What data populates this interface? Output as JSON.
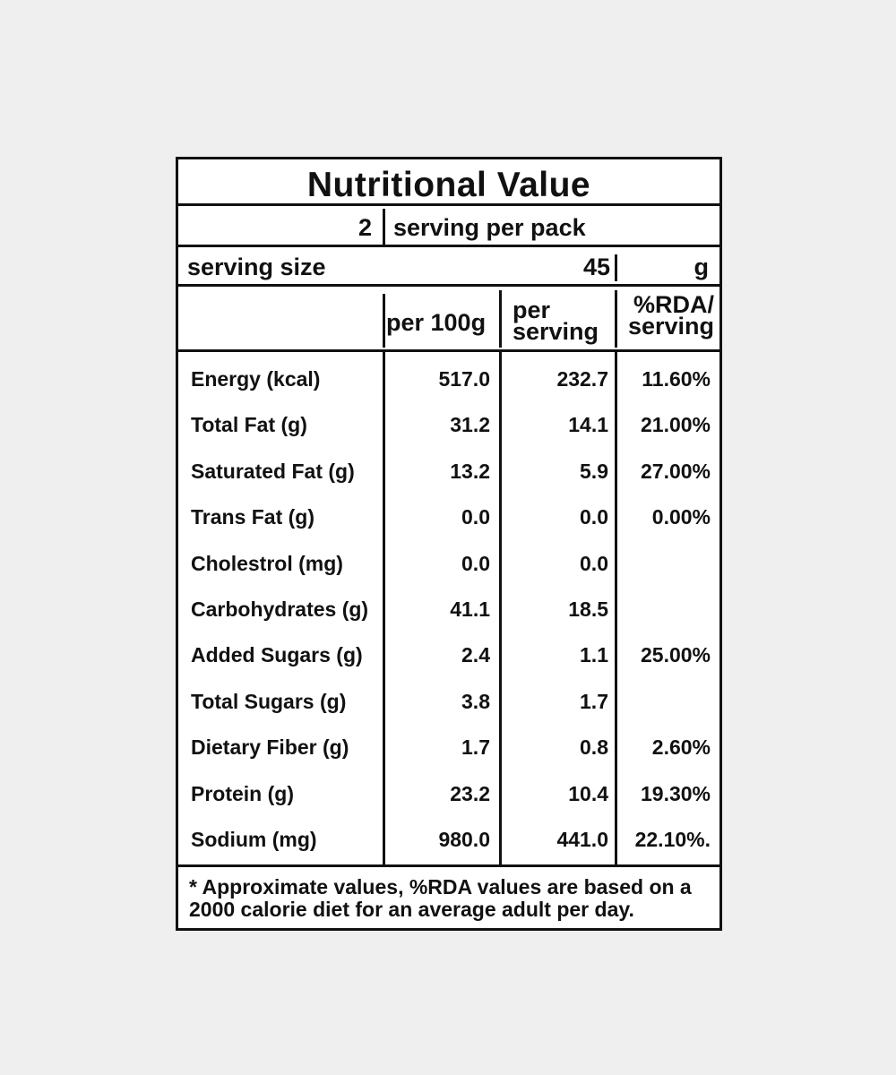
{
  "title": "Nutritional Value",
  "servings_per_pack": {
    "count": "2",
    "label": "serving per pack"
  },
  "serving_size": {
    "label": "serving size",
    "value": "45",
    "unit": "g"
  },
  "columns": {
    "per_100g": "per 100g",
    "per_serving_1": "per",
    "per_serving_2": "serving",
    "rda_1": "%RDA/",
    "rda_2": "serving"
  },
  "rows": [
    {
      "name": "Energy (kcal)",
      "per_100g": "517.0",
      "per_serving": "232.7",
      "rda": "11.60%"
    },
    {
      "name": "Total Fat (g)",
      "per_100g": "31.2",
      "per_serving": "14.1",
      "rda": "21.00%"
    },
    {
      "name": "Saturated Fat (g)",
      "per_100g": "13.2",
      "per_serving": "5.9",
      "rda": "27.00%"
    },
    {
      "name": "Trans Fat (g)",
      "per_100g": "0.0",
      "per_serving": "0.0",
      "rda": "0.00%"
    },
    {
      "name": "Cholestrol (mg)",
      "per_100g": "0.0",
      "per_serving": "0.0",
      "rda": ""
    },
    {
      "name": "Carbohydrates (g)",
      "per_100g": "41.1",
      "per_serving": "18.5",
      "rda": ""
    },
    {
      "name": "Added Sugars (g)",
      "per_100g": "2.4",
      "per_serving": "1.1",
      "rda": "25.00%"
    },
    {
      "name": "Total Sugars (g)",
      "per_100g": "3.8",
      "per_serving": "1.7",
      "rda": ""
    },
    {
      "name": "Dietary Fiber (g)",
      "per_100g": "1.7",
      "per_serving": "0.8",
      "rda": "2.60%"
    },
    {
      "name": "Protein (g)",
      "per_100g": "23.2",
      "per_serving": "10.4",
      "rda": "19.30%"
    },
    {
      "name": "Sodium (mg)",
      "per_100g": "980.0",
      "per_serving": "441.0",
      "rda": "22.10%."
    }
  ],
  "footnote": "* Approximate values, %RDA values are based on a 2000 calorie diet for an average adult per day."
}
